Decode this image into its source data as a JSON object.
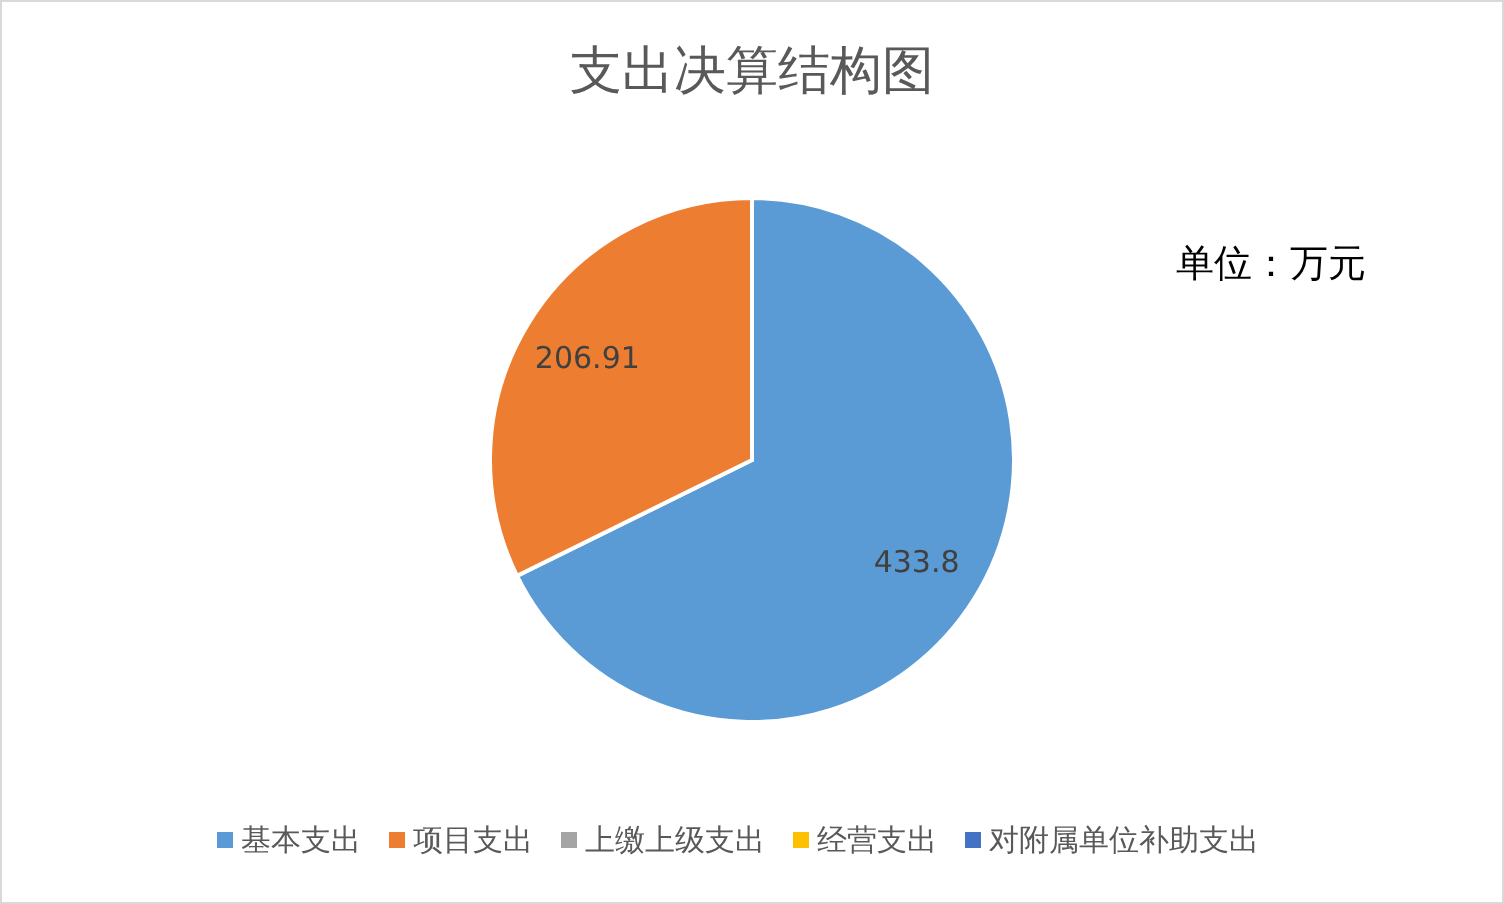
{
  "chart_data": {
    "type": "pie",
    "title": "支出决算结构图",
    "categories": [
      "基本支出",
      "项目支出",
      "上缴上级支出",
      "经营支出",
      "对附属单位补助支出"
    ],
    "values": [
      433.8,
      206.91,
      0,
      0,
      0
    ],
    "colors": [
      "#5b9bd5",
      "#ed7d31",
      "#a5a5a5",
      "#ffc000",
      "#4472c4"
    ],
    "value_labels": [
      "433.8",
      "206.91",
      null,
      null,
      null
    ],
    "annotations": [
      "单位：万元"
    ],
    "legend": "bottom"
  }
}
